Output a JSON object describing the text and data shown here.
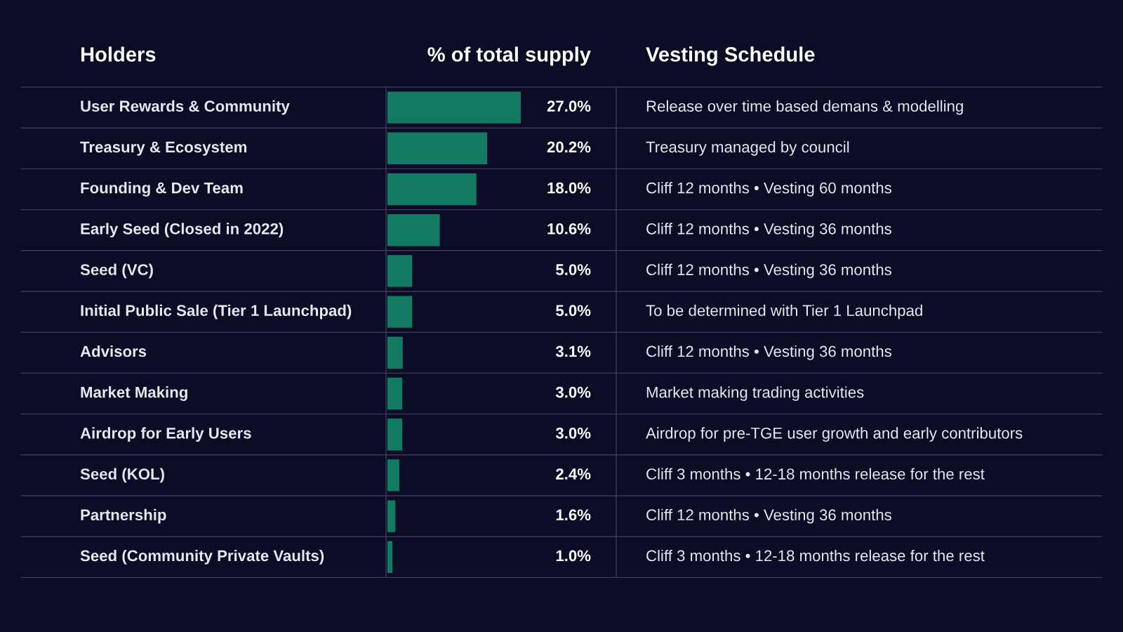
{
  "chart_data": {
    "type": "bar",
    "orientation": "horizontal",
    "ylabel": "Holders",
    "xlabel": "% of total supply",
    "categories": [
      "User Rewards & Community",
      "Treasury & Ecosystem",
      "Founding & Dev Team",
      "Early Seed (Closed in 2022)",
      "Seed (VC)",
      "Initial Public Sale (Tier 1 Launchpad)",
      "Advisors",
      "Market Making",
      "Airdrop for Early Users",
      "Seed (KOL)",
      "Partnership",
      "Seed (Community Private Vaults)"
    ],
    "values": [
      27.0,
      20.2,
      18.0,
      10.6,
      5.0,
      5.0,
      3.1,
      3.0,
      3.0,
      2.4,
      1.6,
      1.0
    ],
    "value_labels": [
      "27.0%",
      "20.2%",
      "18.0%",
      "10.6%",
      "5.0%",
      "5.0%",
      "3.1%",
      "3.0%",
      "3.0%",
      "2.4%",
      "1.6%",
      "1.0%"
    ],
    "color": "#137a62",
    "annotations": [
      "Vesting Schedule",
      "Release over time based demans & modelling",
      "Treasury managed by council",
      "Cliff 12 months • Vesting 60 months",
      "Cliff 12 months • Vesting 36 months",
      "Cliff 12 months • Vesting 36 months",
      "To be determined with Tier 1 Launchpad",
      "Cliff 12 months • Vesting 36 months",
      "Market making trading activities",
      "Airdrop for pre-TGE user growth and early contributors",
      "Cliff 3 months • 12-18 months release for the rest",
      "Cliff 12 months • Vesting 36 months",
      "Cliff 3 months • 12-18 months release for the rest"
    ]
  }
}
